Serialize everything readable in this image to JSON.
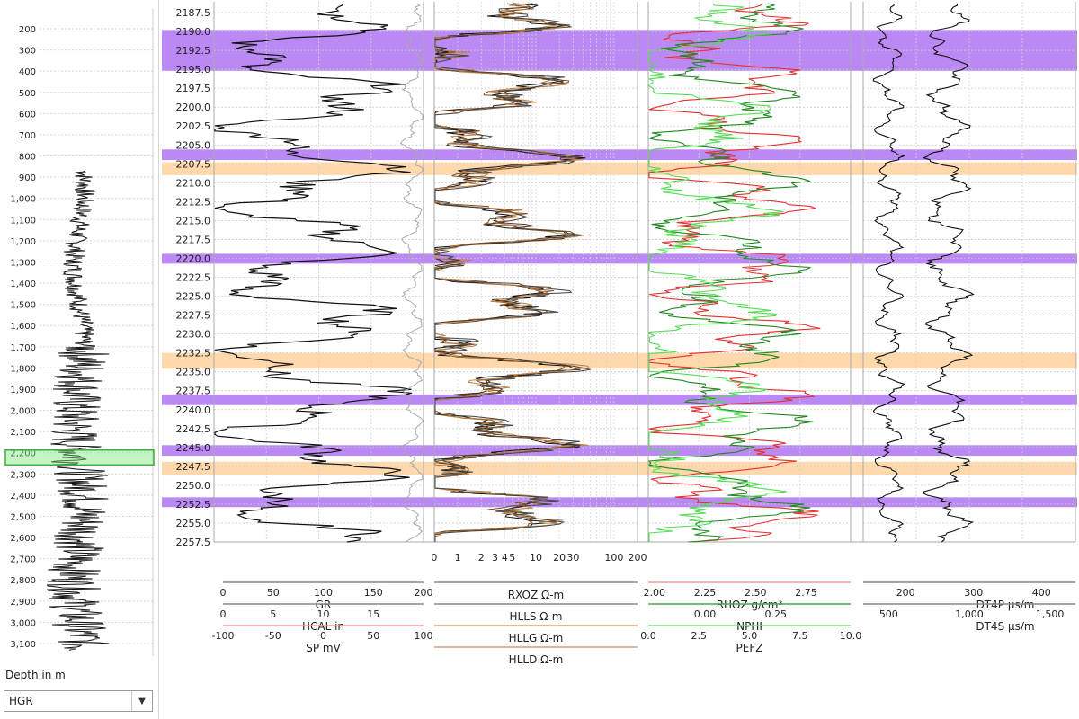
{
  "overview": {
    "depth_ticks": [
      "200",
      "300",
      "400",
      "500",
      "600",
      "700",
      "800",
      "900",
      "1,000",
      "1,100",
      "1,200",
      "1,300",
      "1,400",
      "1,500",
      "1,600",
      "1,700",
      "1,800",
      "1,900",
      "2,000",
      "2,100",
      "2,200",
      "2,300",
      "2,400",
      "2,500",
      "2,600",
      "2,700",
      "2,800",
      "2,900",
      "3,000",
      "3,100"
    ],
    "depth_min": 200,
    "depth_max": 3100,
    "depth_unit_label": "Depth in m",
    "selected_log": "HGR",
    "dropdown_icon": "chevron-down-icon",
    "window_highlight_color": "#3fae3f"
  },
  "chart_data": {
    "type": "line",
    "title": "",
    "depth_axis": {
      "ticks": [
        "2187.5",
        "2190.0",
        "2192.5",
        "2195.0",
        "2197.5",
        "2200.0",
        "2202.5",
        "2205.0",
        "2207.5",
        "2210.0",
        "2212.5",
        "2215.0",
        "2217.5",
        "2220.0",
        "2222.5",
        "2225.0",
        "2227.5",
        "2230.0",
        "2232.5",
        "2235.0",
        "2237.5",
        "2240.0",
        "2242.5",
        "2245.0",
        "2247.5",
        "2250.0",
        "2252.5",
        "2255.0",
        "2257.5"
      ],
      "min": 2187.5,
      "max": 2257.5,
      "grid": true
    },
    "zones": [
      {
        "top": 2189.8,
        "bottom": 2195.2,
        "color": "#b37cf2"
      },
      {
        "top": 2205.6,
        "bottom": 2207.0,
        "color": "#b37cf2"
      },
      {
        "top": 2207.3,
        "bottom": 2209.0,
        "color": "#ffd4a3"
      },
      {
        "top": 2219.4,
        "bottom": 2220.7,
        "color": "#b37cf2"
      },
      {
        "top": 2232.5,
        "bottom": 2234.6,
        "color": "#ffd4a3"
      },
      {
        "top": 2238.0,
        "bottom": 2239.4,
        "color": "#b37cf2"
      },
      {
        "top": 2244.7,
        "bottom": 2246.1,
        "color": "#b37cf2"
      },
      {
        "top": 2246.9,
        "bottom": 2248.6,
        "color": "#ffd4a3"
      },
      {
        "top": 2251.6,
        "bottom": 2252.9,
        "color": "#b37cf2"
      }
    ],
    "tracks": [
      {
        "scales": [
          {
            "label": "GR",
            "color": "#888888",
            "ticks": [
              "0",
              "50",
              "100",
              "150",
              "200"
            ]
          },
          {
            "label": "HCAL in",
            "color": "#888888",
            "ticks": [
              "0",
              "5",
              "10",
              "15"
            ]
          },
          {
            "label": "SP mV",
            "color": "#f29a9a",
            "ticks": [
              "-100",
              "-50",
              "0",
              "50",
              "100"
            ]
          }
        ]
      },
      {
        "scales": [
          {
            "label": "RXOZ Ω-m",
            "color": "#888888",
            "ticks": []
          },
          {
            "label": "HLLS Ω-m",
            "color": "#888888",
            "ticks": []
          },
          {
            "label": "HLLG Ω-m",
            "color": "#e0a070",
            "ticks": []
          },
          {
            "label": "HLLD Ω-m",
            "color": "#d09a8a",
            "ticks": []
          }
        ],
        "log_ticks": [
          "0",
          "1",
          "2",
          "3",
          "4",
          "5",
          "10",
          "20",
          "30",
          "100",
          "200"
        ]
      },
      {
        "scales": [
          {
            "label": "RHOZ g/cm³",
            "color": "#f29a9a",
            "ticks": [
              "2.00",
              "2.25",
              "2.50",
              "2.75"
            ]
          },
          {
            "label": "NPHI",
            "color": "#4aa84a",
            "ticks": [
              "0.00",
              "0.25"
            ]
          },
          {
            "label": "PEFZ",
            "color": "#8ad88a",
            "ticks": [
              "0.0",
              "2.5",
              "5.0",
              "7.5",
              "10.0"
            ]
          }
        ]
      },
      {
        "scales": [
          {
            "label": "DT4P µs/m",
            "color": "#888888",
            "ticks": [
              "200",
              "300",
              "400"
            ]
          },
          {
            "label": "DT4S µs/m",
            "color": "#888888",
            "ticks": [
              "500",
              "1,000",
              "1,500"
            ]
          }
        ]
      }
    ],
    "curve_colors": {
      "GR": "#111111",
      "HCAL": "#aaaaaa",
      "resistivity": [
        "#111111",
        "#7a4a20",
        "#c08040",
        "#444444"
      ],
      "RHOZ": "#e53030",
      "NPHI": "#228822",
      "PEFZ": "#55dd55",
      "DT4P": "#111111",
      "DT4S": "#111111"
    }
  }
}
